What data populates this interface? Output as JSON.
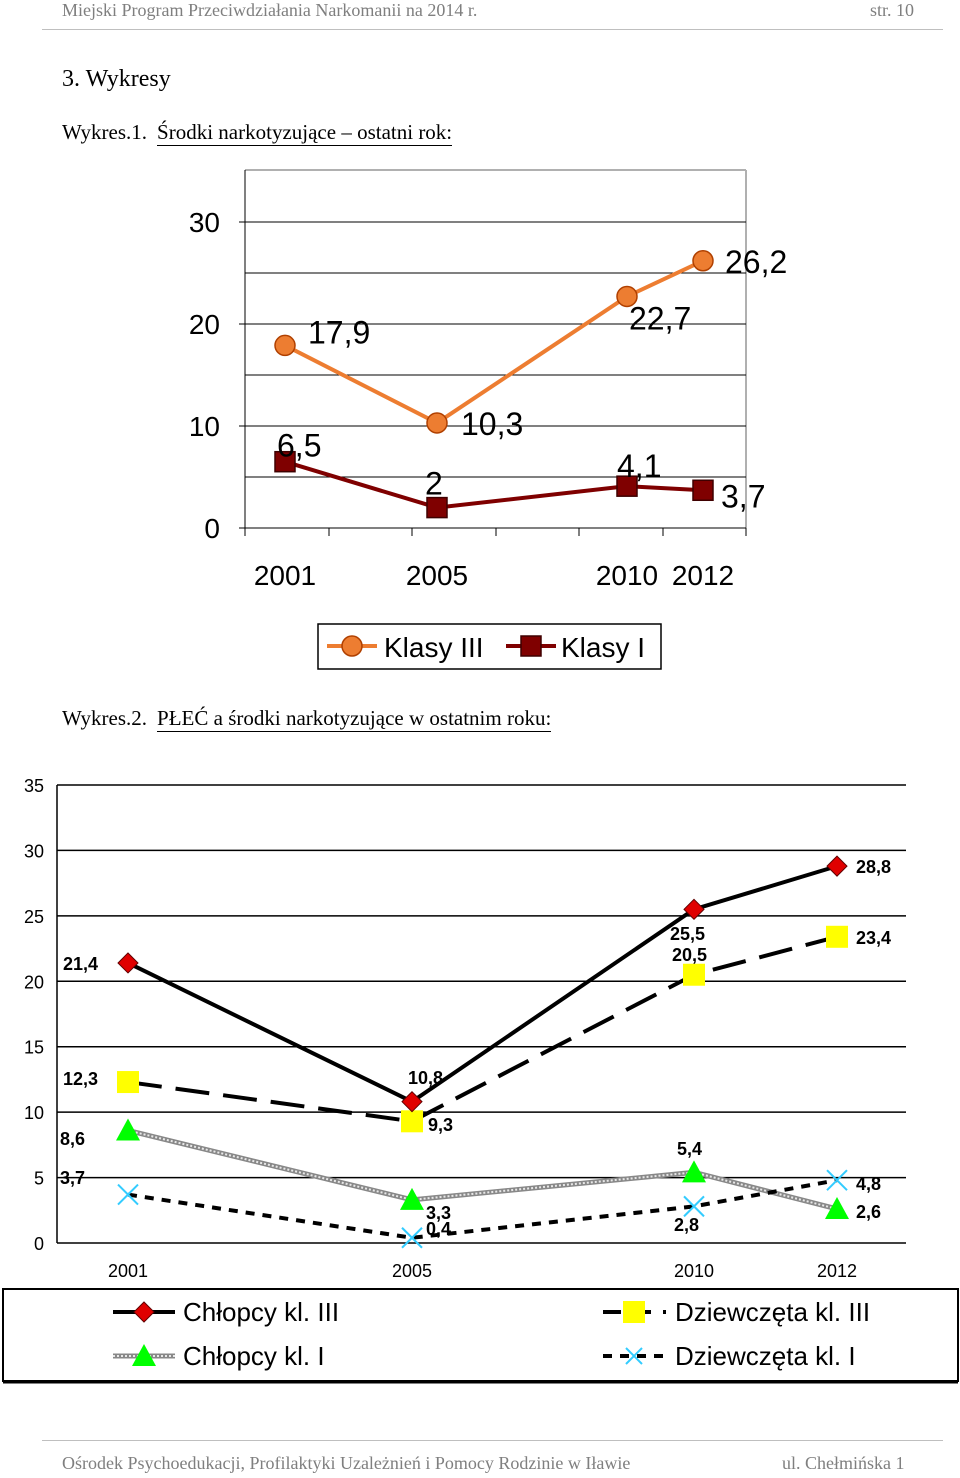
{
  "header": {
    "left": "Miejski Program Przeciwdziałania Narkomanii na 2014 r.",
    "right": "str. 10"
  },
  "section_title": "3. Wykresy",
  "footer": {
    "left": "Ośrodek Psychoedukacji, Profilaktyki Uzależnień i Pomocy Rodzinie w Iławie",
    "right": "ul. Chełmińska 1"
  },
  "colors": {
    "klasy_iii": "#ed7d31",
    "klasy_i": "#7f0000",
    "chlopcy_iii": "#e00000",
    "dziewczeta_iii": "#ffff00",
    "chlopcy_i": "#00ff00",
    "dziewczeta_i": "#33ccff"
  },
  "chart_data": [
    {
      "type": "line",
      "caption_num": "Wykres.1.",
      "caption_text": "Środki narkotyzujące – ostatni rok:",
      "categories": [
        "2001",
        "2005",
        "2010",
        "2012"
      ],
      "x": [
        2001,
        2005,
        2010,
        2012
      ],
      "ylim": [
        0,
        30
      ],
      "yticks": [
        "0",
        "10",
        "20",
        "30"
      ],
      "grid": true,
      "legend_position": "bottom",
      "series": [
        {
          "name": "Klasy III",
          "values": [
            17.9,
            10.3,
            22.7,
            26.2
          ],
          "labels": [
            "17,9",
            "10,3",
            "22,7",
            "26,2"
          ]
        },
        {
          "name": "Klasy I",
          "values": [
            6.5,
            2,
            4.1,
            3.7
          ],
          "labels": [
            "6,5",
            "2",
            "4,1",
            "3,7"
          ]
        }
      ]
    },
    {
      "type": "line",
      "caption_num": "Wykres.2.",
      "caption_text": "PŁEĆ a środki narkotyzujące w ostatnim roku:",
      "categories": [
        "2001",
        "2005",
        "2010",
        "2012"
      ],
      "ylim": [
        0,
        35
      ],
      "yticks": [
        "0",
        "5",
        "10",
        "15",
        "20",
        "25",
        "30",
        "35"
      ],
      "grid": true,
      "legend_position": "bottom",
      "series": [
        {
          "name": "Chłopcy kl. III",
          "values": [
            21.4,
            10.8,
            25.5,
            28.8
          ],
          "labels": [
            "21,4",
            "10,8",
            "25,5",
            "28,8"
          ]
        },
        {
          "name": "Dziewczęta kl. III",
          "values": [
            12.3,
            9.3,
            20.5,
            23.4
          ],
          "labels": [
            "12,3",
            "9,3",
            "20,5",
            "23,4"
          ]
        },
        {
          "name": "Chłopcy kl. I",
          "values": [
            8.6,
            3.3,
            5.4,
            2.6
          ],
          "labels": [
            "8,6",
            "3,3",
            "5,4",
            "2,6"
          ]
        },
        {
          "name": "Dziewczęta kl. I",
          "values": [
            3.7,
            0.4,
            2.8,
            4.8
          ],
          "labels": [
            "3,7",
            "0,4",
            "2,8",
            "4,8"
          ]
        }
      ]
    }
  ]
}
